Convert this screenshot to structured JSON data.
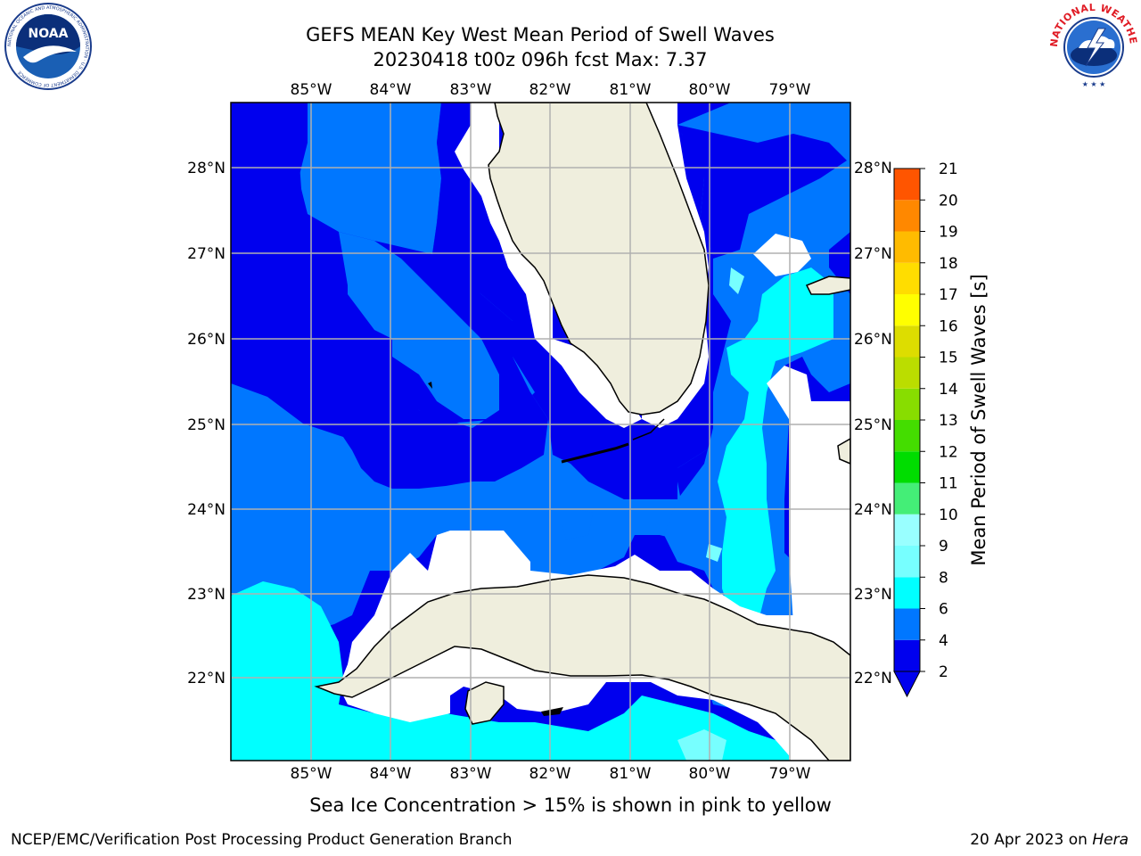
{
  "header": {
    "title_line1": "GEFS MEAN Key West Mean Period of Swell Waves",
    "title_line2": "20230418 t00z 096h fcst   Max: 7.37"
  },
  "logos": {
    "left": {
      "icon": "noaa-logo-icon",
      "text": "NOAA",
      "ring_text": "NATIONAL OCEANIC AND ATMOSPHERIC ADMINISTRATION · U.S. DEPARTMENT OF COMMERCE"
    },
    "right": {
      "icon": "nws-logo-icon",
      "ring_text": "NATIONAL WEATHER SERVICE"
    }
  },
  "map": {
    "lon_labels": [
      "85°W",
      "84°W",
      "83°W",
      "82°W",
      "81°W",
      "80°W",
      "79°W"
    ],
    "lat_labels": [
      "28°N",
      "27°N",
      "26°N",
      "25°N",
      "24°N",
      "23°N",
      "22°N"
    ],
    "colors": {
      "land": "#efeedd",
      "band_2_4": "#0000ee",
      "band_4_6": "#0077ff",
      "band_6_8": "#00ffff",
      "band_8_9": "#77ffff",
      "no_data": "#ffffff",
      "grid": "#b0b0b0",
      "coast": "#000000"
    }
  },
  "colorbar": {
    "label": "Mean Period of Swell Waves [s]",
    "ticks": [
      "2",
      "4",
      "6",
      "8",
      "9",
      "10",
      "11",
      "12",
      "13",
      "14",
      "15",
      "16",
      "17",
      "18",
      "19",
      "20",
      "21"
    ],
    "colors": [
      "#0000ee",
      "#0077ff",
      "#00ffff",
      "#77ffff",
      "#99ffff",
      "#44ee77",
      "#00dd00",
      "#44dd00",
      "#88dd00",
      "#bbdd00",
      "#dddd00",
      "#ffff00",
      "#ffdd00",
      "#ffbb00",
      "#ff8800",
      "#ff5500",
      "#ff2200",
      "#ff0000"
    ],
    "under_color": "#0000ee"
  },
  "notes": {
    "sea_ice": "Sea Ice Concentration > 15% is shown in pink to yellow"
  },
  "footer": {
    "left": "NCEP/EMC/Verification Post Processing Product Generation Branch",
    "date": "20 Apr 2023 on",
    "machine": "Hera"
  }
}
